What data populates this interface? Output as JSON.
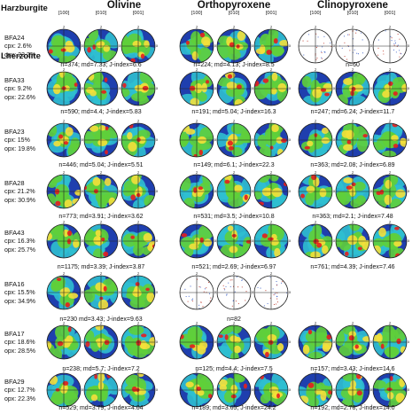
{
  "minerals": [
    "Olivine",
    "Orthopyroxene",
    "Clinopyroxene"
  ],
  "axes": [
    "[100]",
    "[010]",
    "[001]"
  ],
  "pole_marks": {
    "top": "z",
    "right": "x"
  },
  "groups": [
    "Harzburgite",
    "Lherzolite"
  ],
  "samples": [
    {
      "name": "BFA24",
      "lines": [
        "cpx: 2.6%",
        "opx: 23.2%"
      ],
      "stats": [
        "n=374; md=7.33; J-index=6.6",
        "n=224; md=4.13; J-index=8.5",
        "n=60"
      ],
      "sparse": [
        false,
        false,
        true
      ]
    },
    {
      "name": "BFA33",
      "lines": [
        "cpx: 9.2%",
        "opx: 22.6%"
      ],
      "stats": [
        "n=590; md=4.4; J-index=5.83",
        "n=191; md=5.04; J-index=16.3",
        "n=247; md=6.24; J-index=11.7"
      ],
      "sparse": [
        false,
        false,
        false
      ]
    },
    {
      "name": "BFA23",
      "lines": [
        "cpx: 15%",
        "opx: 19.8%"
      ],
      "stats": [
        "n=446; md=5.04; J-index=5.51",
        "n=149; md=6.1; J-index=22.3",
        "n=363; md=2.08; J-index=6.89"
      ],
      "sparse": [
        false,
        false,
        false
      ]
    },
    {
      "name": "BFA28",
      "lines": [
        "cpx: 21.2%",
        "opx: 30.9%"
      ],
      "stats": [
        "n=773; md=3.91; J-index=3.62",
        "n=531; md=3.5; J-index=10.8",
        "n=363; md=2.1; J-index=7.48"
      ],
      "sparse": [
        false,
        false,
        false
      ]
    },
    {
      "name": "BFA43",
      "lines": [
        "cpx: 16.3%",
        "opx: 25.7%"
      ],
      "stats": [
        "n=1175; md=3.39; J-index=3.87",
        "n=521; md=2.69; J-index=6.97",
        "n=761; md=4.39; J-index=7.46"
      ],
      "sparse": [
        false,
        false,
        false
      ]
    },
    {
      "name": "BFA16",
      "lines": [
        "cpx: 15.5%",
        "opx: 34.9%"
      ],
      "stats": [
        "n=230 md=3.43; J-index=9.63",
        "n=82",
        ""
      ],
      "sparse": [
        false,
        true,
        null
      ]
    },
    {
      "name": "BFA17",
      "lines": [
        "cpx: 18.6%",
        "opx: 28.5%"
      ],
      "stats": [
        "n=238; md=5.7; J-index=7.2",
        "n=125; md=4.4; J-index=7.5",
        "n=157; md=3.43; J-index=14.6"
      ],
      "sparse": [
        false,
        false,
        false
      ]
    },
    {
      "name": "BFA29",
      "lines": [
        "cpx: 12.7%",
        "opx: 22.3%"
      ],
      "stats": [
        "n=529; md=3.79; J-index=4.04",
        "n=189; md=3.65; J-index=24.2",
        "n=192; md=2.78; J-index=14.0"
      ],
      "sparse": [
        false,
        false,
        false
      ]
    }
  ],
  "colors": {
    "low": "#1f3fae",
    "mid": "#2fbfd0",
    "green": "#5fcf3a",
    "high": "#f4e03a",
    "peak": "#e41e1e"
  }
}
